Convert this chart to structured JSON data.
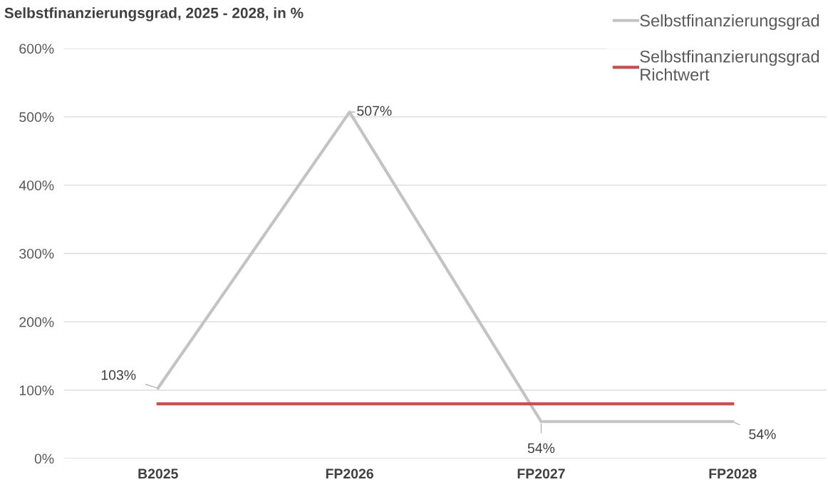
{
  "chart_data": {
    "type": "line",
    "title": "Selbstfinanzierungsgrad, 2025 - 2028, in %",
    "categories": [
      "B2025",
      "FP2026",
      "FP2027",
      "FP2028"
    ],
    "series": [
      {
        "name": "Selbstfinanzierungsgrad",
        "color": "#c3c3c3",
        "values": [
          103,
          507,
          54,
          54
        ],
        "value_labels": [
          "103%",
          "507%",
          "54%",
          "54%"
        ]
      },
      {
        "name": "Selbstfinanzierungsgrad\nRichtwert",
        "color": "#c0504d",
        "values": [
          80,
          80,
          80,
          80
        ]
      }
    ],
    "ylim": [
      0,
      600
    ],
    "yticks": [
      {
        "value": 0,
        "label": "0%"
      },
      {
        "value": 100,
        "label": "100%"
      },
      {
        "value": 200,
        "label": "200%"
      },
      {
        "value": 300,
        "label": "300%"
      },
      {
        "value": 400,
        "label": "400%"
      },
      {
        "value": 500,
        "label": "500%"
      },
      {
        "value": 600,
        "label": "600%"
      }
    ],
    "grid": "y",
    "legend": "top right",
    "marker": "none",
    "line_style": "solid"
  }
}
